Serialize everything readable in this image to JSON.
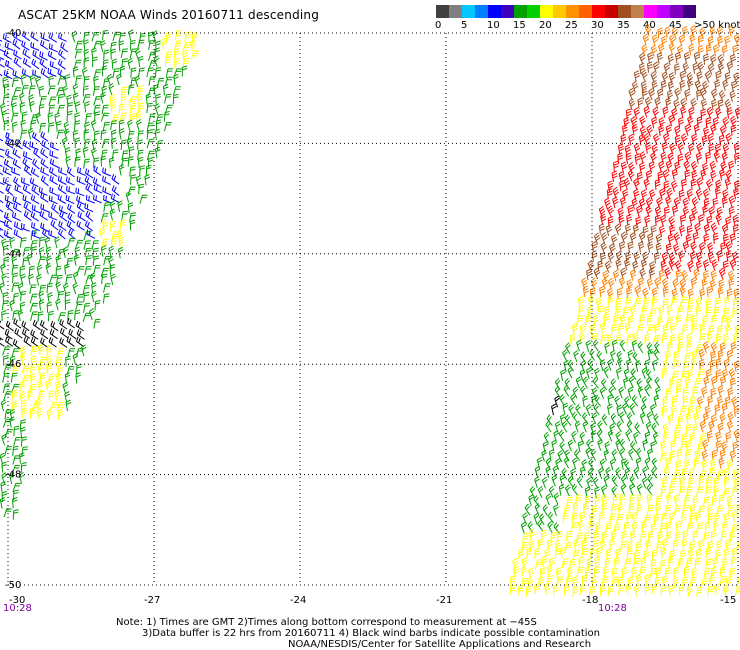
{
  "header": {
    "title": "ASCAT 25KM NOAA Winds 20160711 descending"
  },
  "legend": {
    "unit_label": ">50 knots",
    "bins": [
      {
        "label": "0",
        "colors": [
          "#404040",
          "#808080"
        ]
      },
      {
        "label": "5",
        "colors": [
          "#00c8ff",
          "#0080ff"
        ]
      },
      {
        "label": "10",
        "colors": [
          "#0000ff",
          "#4000c0"
        ]
      },
      {
        "label": "15",
        "colors": [
          "#00a000",
          "#00d000"
        ]
      },
      {
        "label": "20",
        "colors": [
          "#ffff00",
          "#ffc800"
        ]
      },
      {
        "label": "25",
        "colors": [
          "#ff9000",
          "#ff6000"
        ]
      },
      {
        "label": "30",
        "colors": [
          "#ff0000",
          "#c80000"
        ]
      },
      {
        "label": "35",
        "colors": [
          "#a05020",
          "#c08050"
        ]
      },
      {
        "label": "40",
        "colors": [
          "#ff00ff",
          "#c000ff"
        ]
      },
      {
        "label": "45",
        "colors": [
          "#8000c0",
          "#400080"
        ]
      }
    ]
  },
  "map": {
    "lon_labels": [
      "-30",
      "-27",
      "-24",
      "-21",
      "-18",
      "-15"
    ],
    "lat_labels": [
      "-40",
      "-42",
      "-44",
      "-46",
      "-48",
      "-50"
    ],
    "lon_range": [
      -30,
      -15
    ],
    "lat_range": [
      -50,
      -40
    ],
    "grid": "dotted",
    "swaths": [
      {
        "name": "west",
        "time_label": "10:28",
        "lon_at_bottom": -30
      },
      {
        "name": "east",
        "time_label": "10:28",
        "lon_at_bottom": -18
      }
    ],
    "barb_color_key": {
      "blue": "#0000ff",
      "green": "#00a000",
      "yellow": "#ffff00",
      "orange": "#ff8000",
      "red": "#ff0000",
      "brown": "#a05020",
      "black": "#000000"
    }
  },
  "footer": {
    "note_line1": "Note: 1) Times are GMT 2)Times along bottom correspond to measurement at −45S",
    "note_line2": "3)Data buffer is 22 hrs from 20160711 4) Black wind barbs indicate possible contamination",
    "note_line3": "NOAA/NESDIS/Center for Satellite Applications and Research"
  }
}
